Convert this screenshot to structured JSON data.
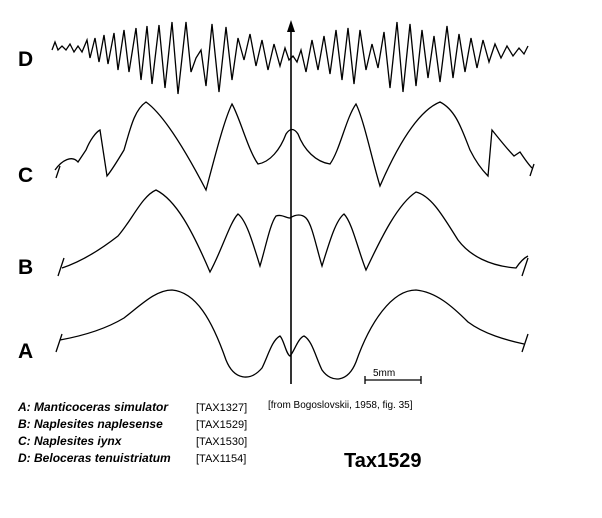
{
  "figure": {
    "rows": [
      {
        "letter": "D"
      },
      {
        "letter": "C"
      },
      {
        "letter": "B"
      },
      {
        "letter": "A"
      }
    ],
    "scale_bar": {
      "label": "5mm"
    }
  },
  "legend": [
    {
      "letter": "A:",
      "species": "Manticoceras simulator",
      "tax": "[TAX1327]"
    },
    {
      "letter": "B:",
      "species": "Naplesites naplesense",
      "tax": "[TAX1529]"
    },
    {
      "letter": "C:",
      "species": "Naplesites iynx",
      "tax": "[TAX1530]"
    },
    {
      "letter": "D:",
      "species": "Beloceras  tenuistriatum",
      "tax": "[TAX1154]"
    }
  ],
  "source_note": "[from Bogoslovskii, 1958, fig. 35]",
  "title": "Tax1529"
}
